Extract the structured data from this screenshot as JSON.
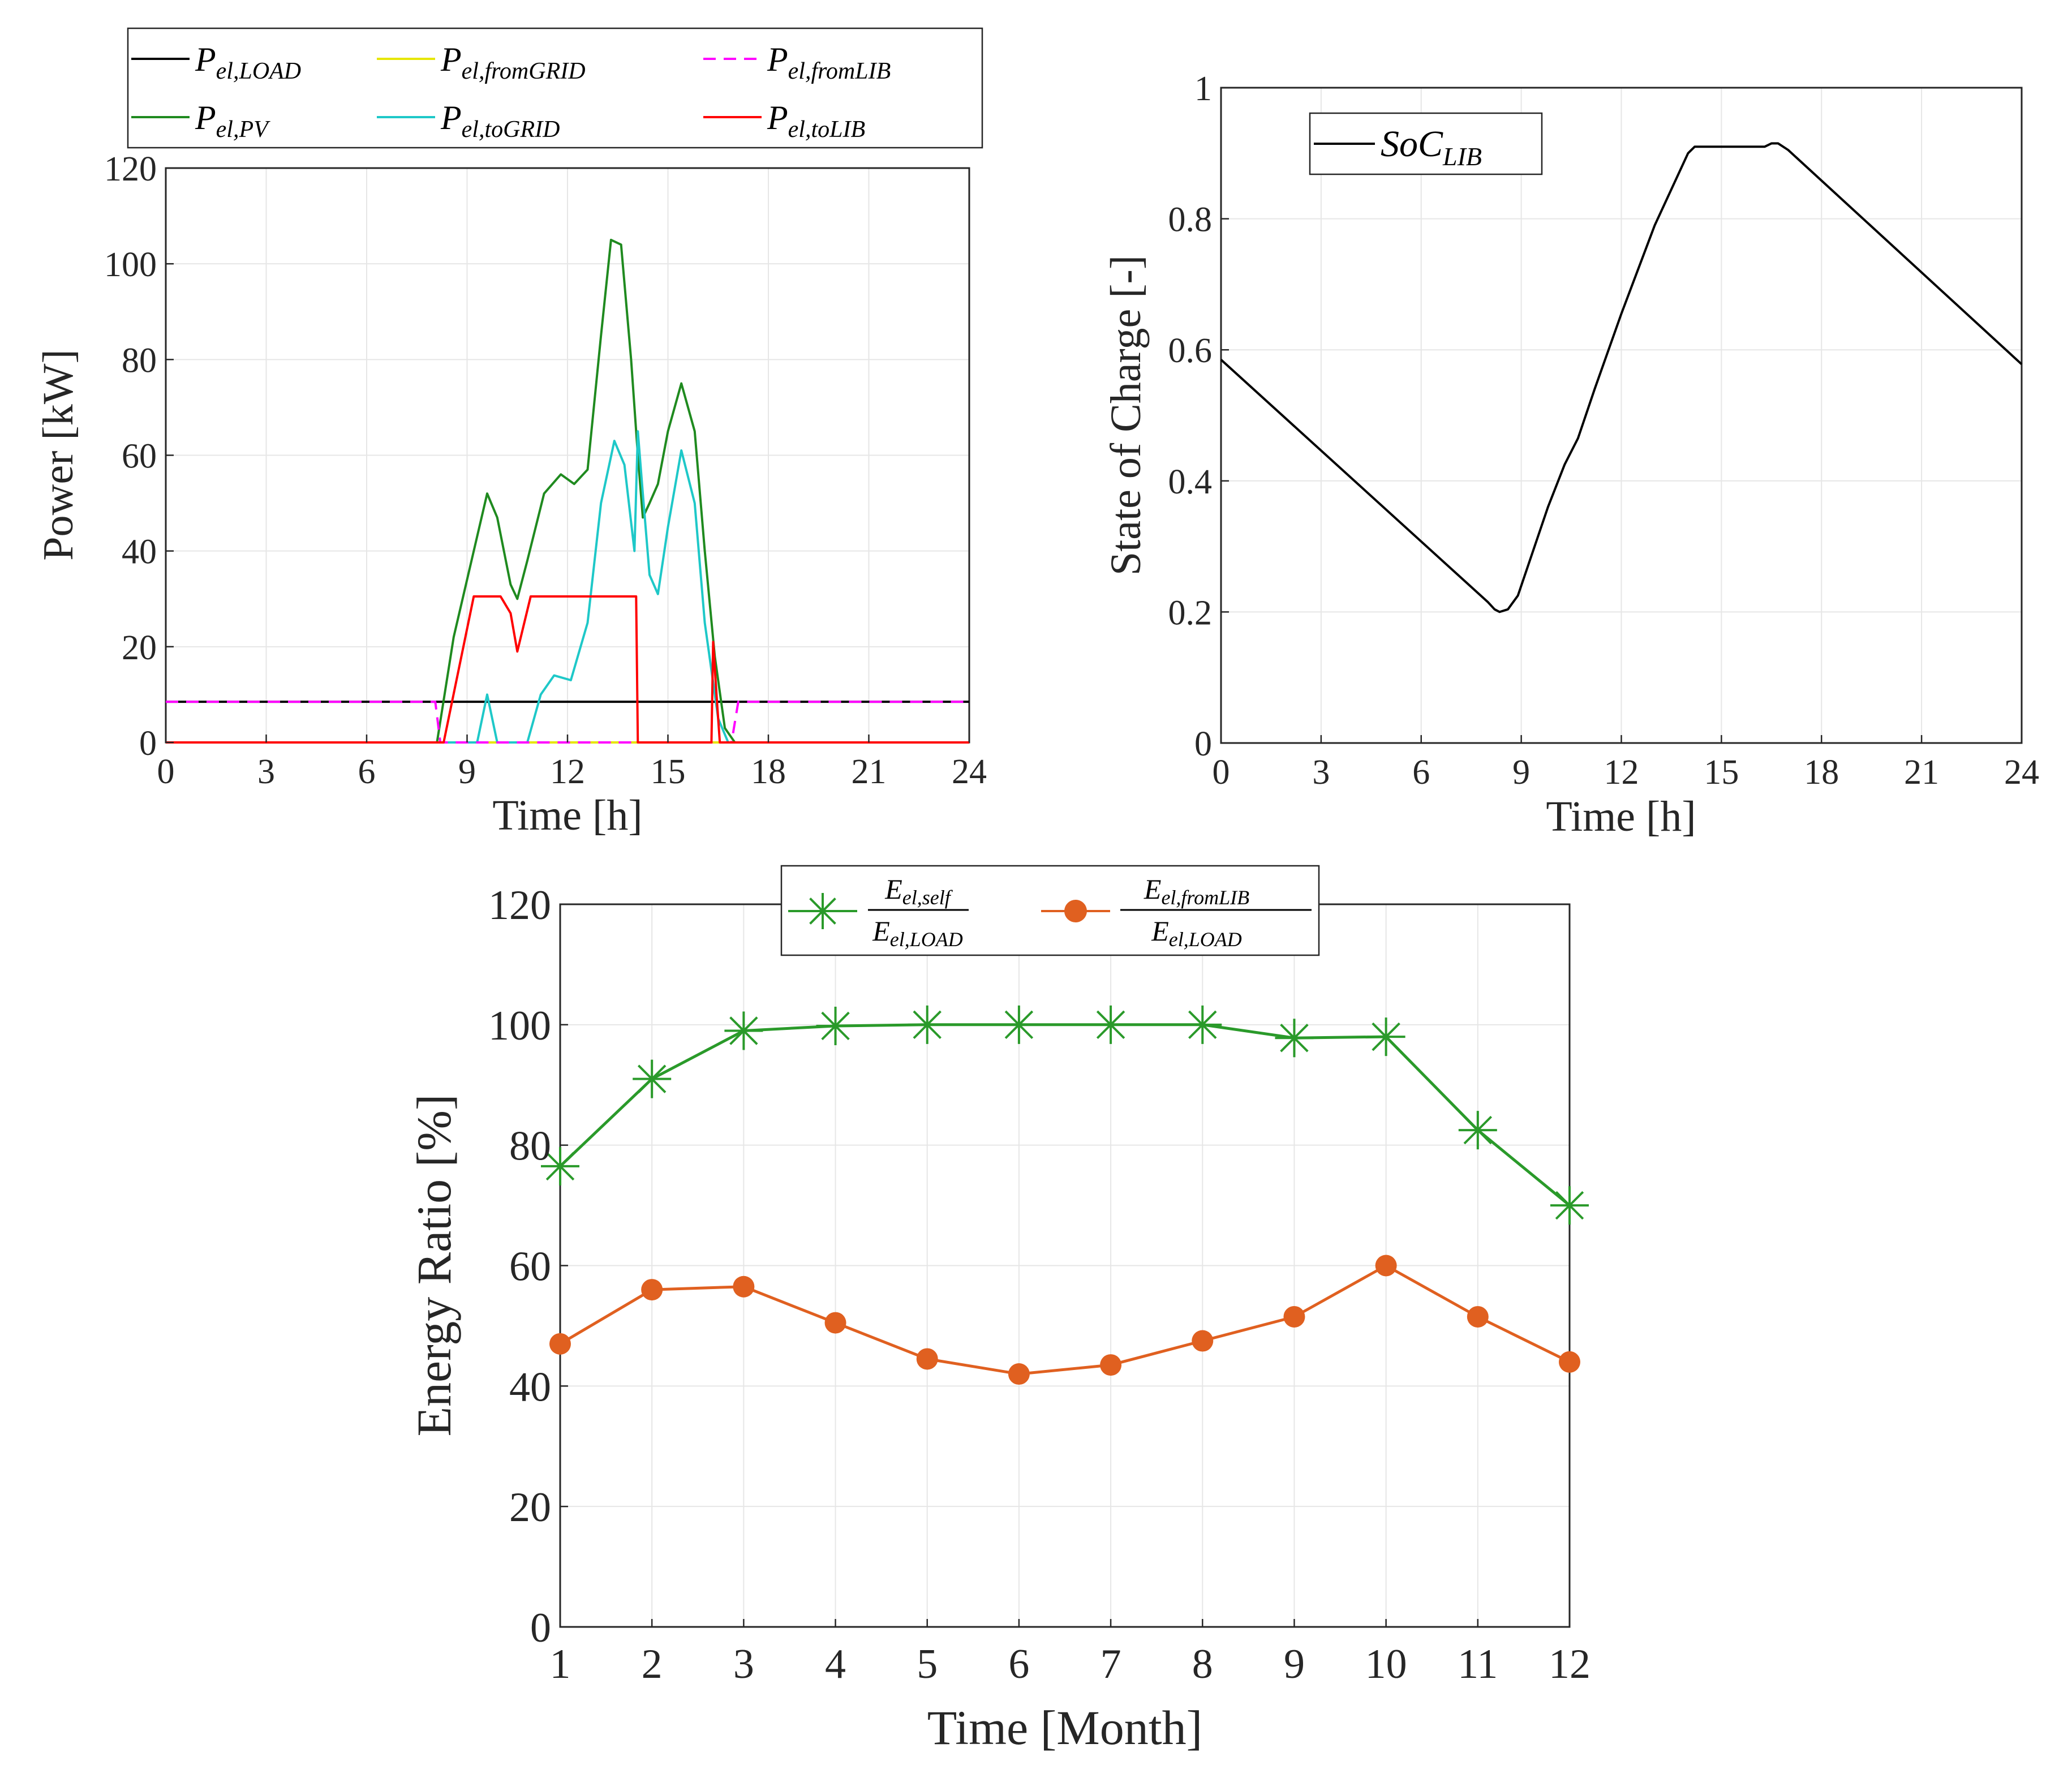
{
  "chart_data": [
    {
      "type": "line",
      "id": "power",
      "xlabel": "Time [h]",
      "ylabel": "Power [kW]",
      "xlim": [
        0,
        24
      ],
      "ylim": [
        0,
        120
      ],
      "xticks": [
        "0",
        "3",
        "6",
        "9",
        "12",
        "15",
        "18",
        "21",
        "24"
      ],
      "yticks": [
        "0",
        "20",
        "40",
        "60",
        "80",
        "100",
        "120"
      ],
      "grid": true,
      "legend_position": "top, outside",
      "series": [
        {
          "name": "P_{el,LOAD}",
          "label_main": "P",
          "label_sub": "el,LOAD",
          "color": "#000000",
          "dash": "solid",
          "x": [
            0,
            24
          ],
          "y": [
            8.5,
            8.5
          ]
        },
        {
          "name": "P_{el,PV}",
          "label_main": "P",
          "label_sub": "el,PV",
          "color": "#1f8a1f",
          "dash": "solid",
          "x": [
            0,
            8.1,
            8.6,
            9.2,
            9.6,
            9.9,
            10.3,
            10.5,
            10.8,
            11.3,
            11.8,
            12.2,
            12.6,
            13.0,
            13.3,
            13.6,
            13.9,
            14.1,
            14.25,
            14.45,
            14.7,
            15.0,
            15.4,
            15.8,
            16.1,
            16.4,
            16.7,
            17.0,
            24
          ],
          "y": [
            0,
            0,
            22,
            40,
            52,
            47,
            33,
            30,
            38,
            52,
            56,
            54,
            57,
            85,
            105,
            104,
            80,
            60,
            47,
            50,
            54,
            65,
            75,
            65,
            40,
            18,
            3,
            0,
            0
          ]
        },
        {
          "name": "P_{el,fromGRID}",
          "label_main": "P",
          "label_sub": "el,fromGRID",
          "color": "#e6e600",
          "dash": "solid",
          "x": [
            0,
            24
          ],
          "y": [
            0,
            0
          ]
        },
        {
          "name": "P_{el,toGRID}",
          "label_main": "P",
          "label_sub": "el,toGRID",
          "color": "#1ec8c8",
          "dash": "solid",
          "x": [
            0,
            9.3,
            9.6,
            9.9,
            10.2,
            10.8,
            11.2,
            11.6,
            12.1,
            12.6,
            13.0,
            13.4,
            13.7,
            14.0,
            14.1,
            14.25,
            14.45,
            14.7,
            15.0,
            15.4,
            15.8,
            16.1,
            16.5,
            16.8,
            24
          ],
          "y": [
            0,
            0,
            10,
            0,
            0,
            0,
            10,
            14,
            13,
            25,
            50,
            63,
            58,
            40,
            65,
            52,
            35,
            31,
            45,
            61,
            50,
            25,
            5,
            0,
            0
          ]
        },
        {
          "name": "P_{el,fromLIB}",
          "label_main": "P",
          "label_sub": "el,fromLIB",
          "color": "#ff00ff",
          "dash": "dashed",
          "x": [
            0,
            8.05,
            8.2,
            16.9,
            17.1,
            24
          ],
          "y": [
            8.5,
            8.5,
            0,
            0,
            8.5,
            8.5
          ]
        },
        {
          "name": "P_{el,toLIB}",
          "label_main": "P",
          "label_sub": "el,toLIB",
          "color": "#ff0000",
          "dash": "solid",
          "x": [
            0,
            8.3,
            9.2,
            10.0,
            10.3,
            10.5,
            10.9,
            11.1,
            13.0,
            14.05,
            14.1,
            14.2,
            16.3,
            16.35,
            16.45,
            16.55,
            16.65,
            24
          ],
          "y": [
            0,
            0,
            30.5,
            30.5,
            27,
            19,
            30.5,
            30.5,
            30.5,
            30.5,
            0,
            0,
            0,
            21,
            10,
            0,
            0,
            0
          ]
        }
      ]
    },
    {
      "type": "line",
      "id": "soc",
      "xlabel": "Time [h]",
      "ylabel": "State of Charge [-]",
      "xlim": [
        0,
        24
      ],
      "ylim": [
        0,
        1
      ],
      "xticks": [
        "0",
        "3",
        "6",
        "9",
        "12",
        "15",
        "18",
        "21",
        "24"
      ],
      "yticks": [
        "0",
        "0.2",
        "0.4",
        "0.6",
        "0.8",
        "1"
      ],
      "grid": true,
      "legend_position": "top-left, inside",
      "series": [
        {
          "name": "SoC_{LIB}",
          "label_main": "SoC",
          "label_sub": "LIB",
          "color": "#000000",
          "dash": "solid",
          "x": [
            0,
            8.0,
            8.2,
            8.35,
            8.6,
            8.9,
            9.3,
            9.8,
            10.3,
            10.7,
            11.2,
            12.0,
            13.0,
            14.0,
            14.2,
            16.3,
            16.5,
            16.7,
            17.0,
            24
          ],
          "y": [
            0.585,
            0.215,
            0.204,
            0.2,
            0.204,
            0.225,
            0.285,
            0.36,
            0.425,
            0.465,
            0.54,
            0.655,
            0.79,
            0.9,
            0.91,
            0.91,
            0.915,
            0.915,
            0.905,
            0.578
          ]
        }
      ]
    },
    {
      "type": "line",
      "id": "energy_ratio",
      "xlabel": "Time [Month]",
      "ylabel": "Energy Ratio [%]",
      "xlim": [
        1,
        12
      ],
      "ylim": [
        0,
        120
      ],
      "xticks": [
        "1",
        "2",
        "3",
        "4",
        "5",
        "6",
        "7",
        "8",
        "9",
        "10",
        "11",
        "12"
      ],
      "yticks": [
        "0",
        "20",
        "40",
        "60",
        "80",
        "100",
        "120"
      ],
      "grid": true,
      "legend_position": "top, outside",
      "series": [
        {
          "name": "E_{el,self} / E_{el,LOAD}",
          "num_main": "E",
          "num_sub": "el,self",
          "den_main": "E",
          "den_sub": "el,LOAD",
          "color": "#2a9a2a",
          "marker": "asterisk",
          "x": [
            1,
            2,
            3,
            4,
            5,
            6,
            7,
            8,
            9,
            10,
            11,
            12
          ],
          "y": [
            76.5,
            91,
            99,
            99.8,
            100,
            100,
            100,
            100,
            97.8,
            98,
            82.5,
            70
          ]
        },
        {
          "name": "E_{el,fromLIB} / E_{el,LOAD}",
          "num_main": "E",
          "num_sub": "el,fromLIB",
          "den_main": "E",
          "den_sub": "el,LOAD",
          "color": "#e06020",
          "marker": "circle",
          "x": [
            1,
            2,
            3,
            4,
            5,
            6,
            7,
            8,
            9,
            10,
            11,
            12
          ],
          "y": [
            47,
            56,
            56.5,
            50.5,
            44.5,
            42,
            43.5,
            47.5,
            51.5,
            60,
            51.5,
            44
          ]
        }
      ]
    }
  ]
}
